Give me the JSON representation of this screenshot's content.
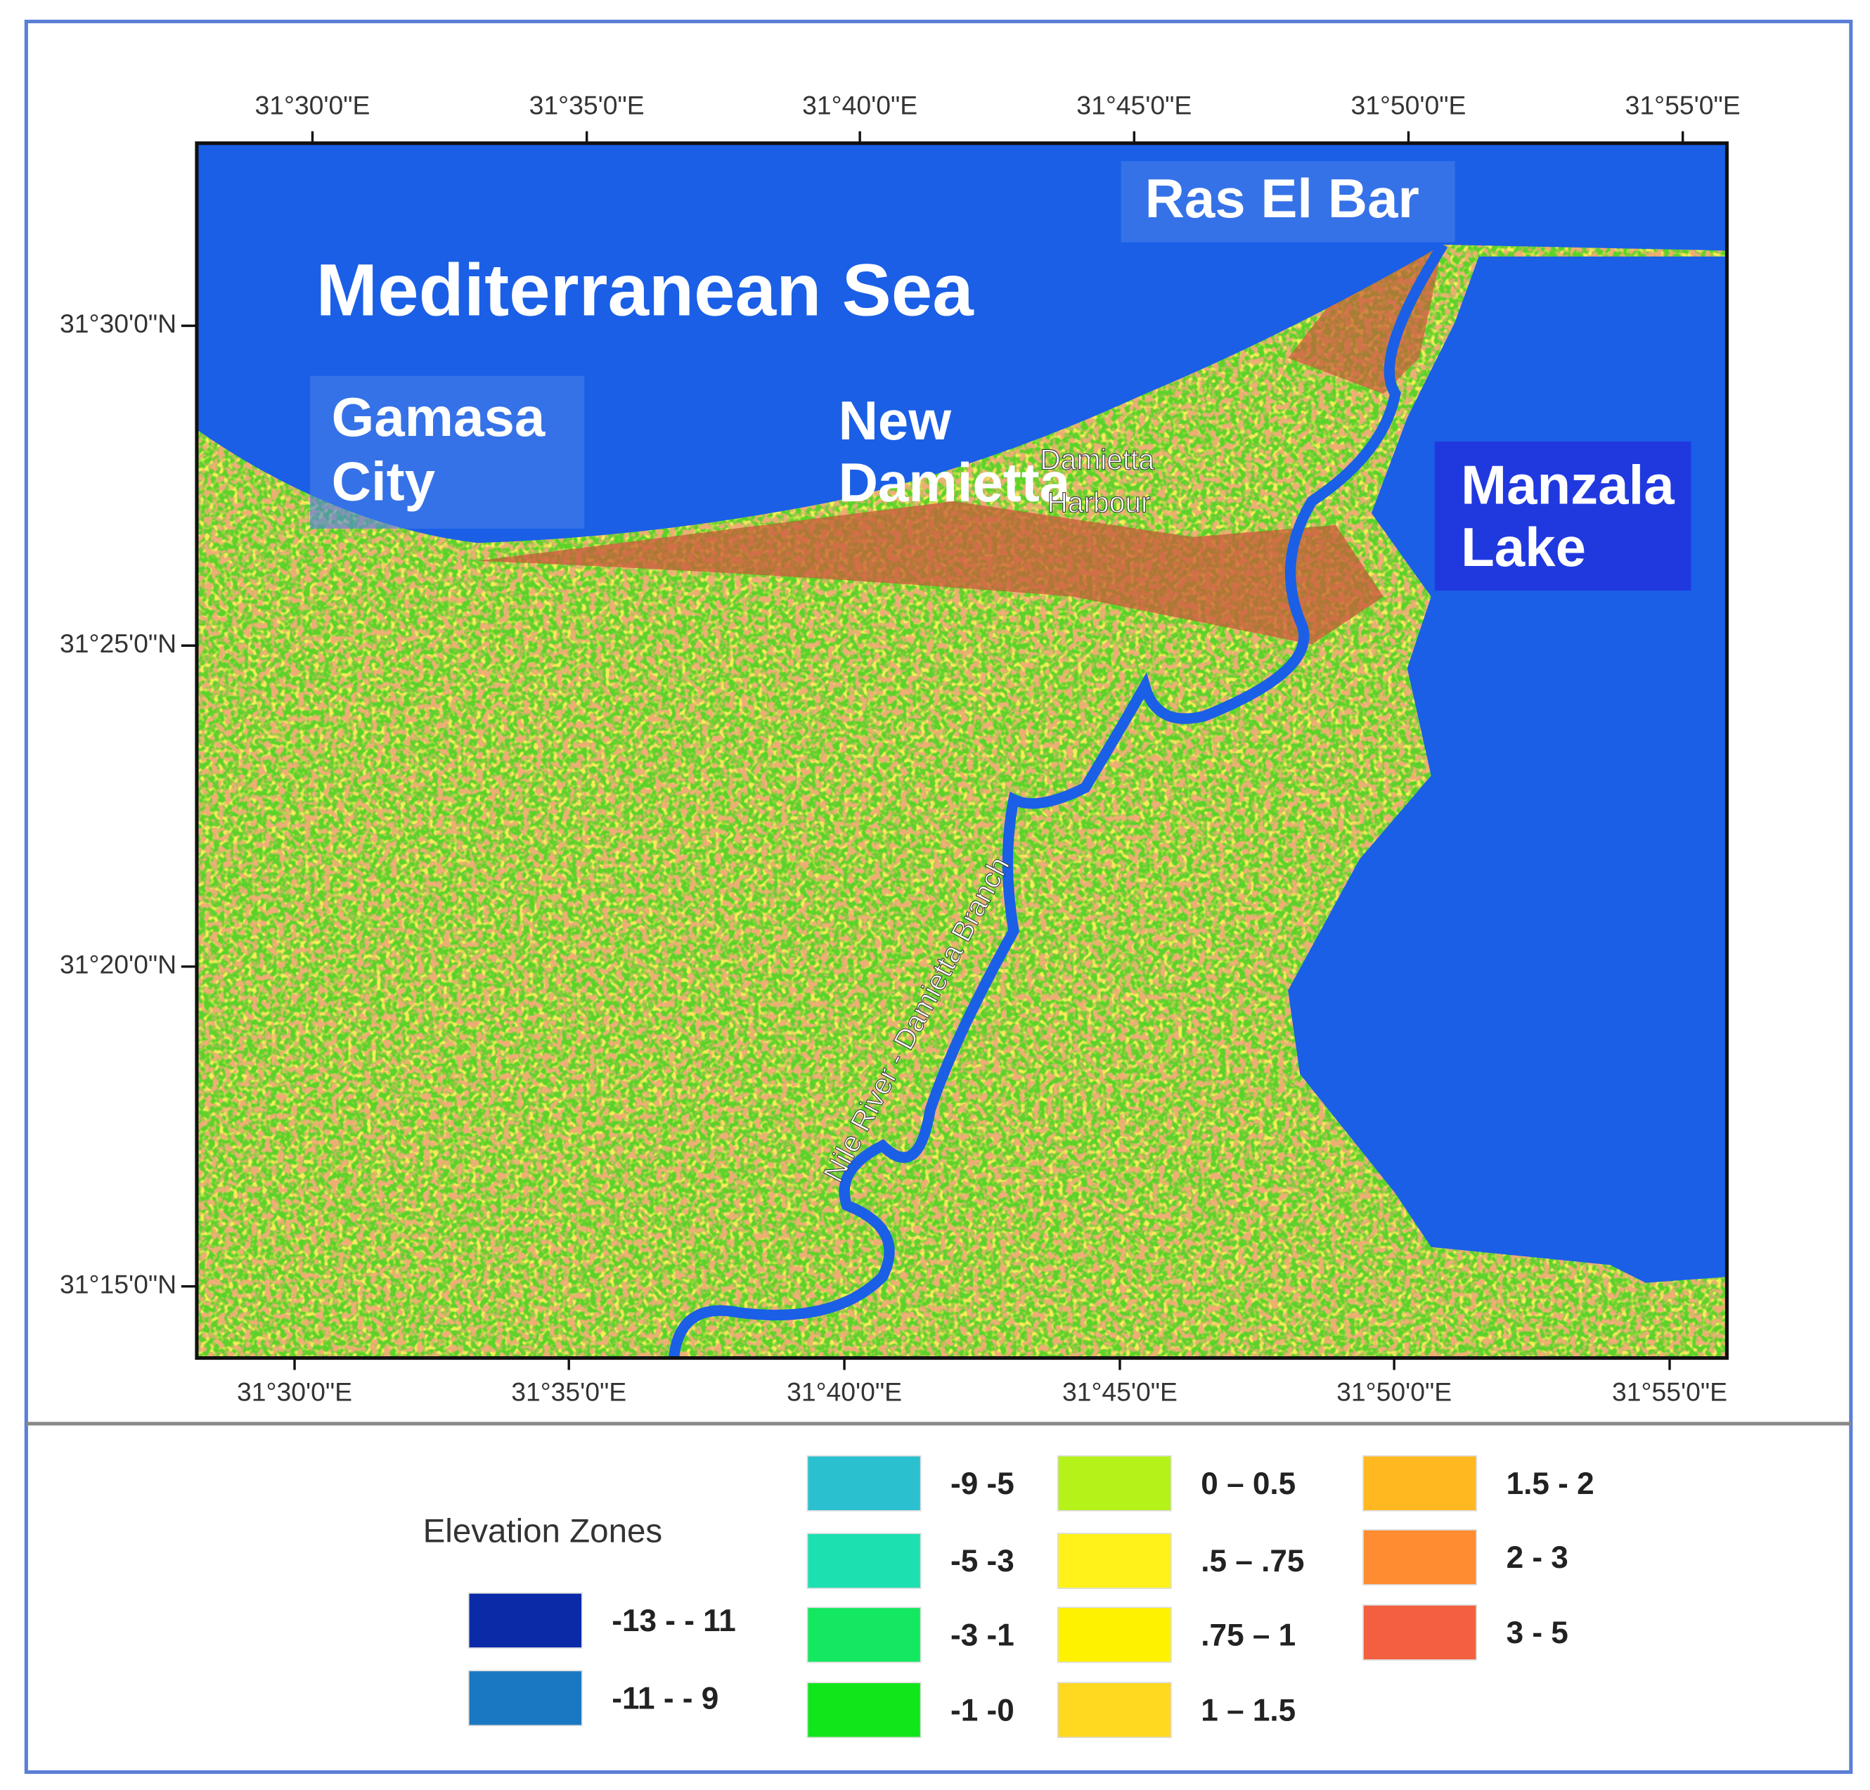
{
  "map": {
    "labels": {
      "sea": "Mediterranean Sea",
      "ras_el_bar": "Ras El Bar",
      "gamasa": [
        "Gamasa",
        "City"
      ],
      "new_damietta": [
        "New",
        "Damietta"
      ],
      "harbour": [
        "Damietta",
        "Harbour"
      ],
      "manzala": [
        "Manzala",
        "Lake"
      ],
      "river": "Nile River - Damietta Branch"
    },
    "top_ticks": [
      "31°30'0\"E",
      "31°35'0\"E",
      "31°40'0\"E",
      "31°45'0\"E",
      "31°50'0\"E",
      "31°55'0\"E"
    ],
    "bottom_ticks": [
      "31°30'0\"E",
      "31°35'0\"E",
      "31°40'0\"E",
      "31°45'0\"E",
      "31°50'0\"E",
      "31°55'0\"E"
    ],
    "left_ticks": [
      "31°30'0\"N",
      "31°25'0\"N",
      "31°20'0\"N",
      "31°15'0\"N"
    ]
  },
  "legend": {
    "title": "Elevation Zones",
    "items": [
      {
        "label": "-13 - - 11",
        "color": "#0a2aa8"
      },
      {
        "label": "-11 - - 9",
        "color": "#1a78c2"
      },
      {
        "label": "-9 -5",
        "color": "#2bc0d0"
      },
      {
        "label": "-5 -3",
        "color": "#1de0b0"
      },
      {
        "label": "-3 -1",
        "color": "#14e860"
      },
      {
        "label": "-1 -0",
        "color": "#10e61a"
      },
      {
        "label": "0 – 0.5",
        "color": "#b4f21a"
      },
      {
        "label": ".5 – .75",
        "color": "#fff21a"
      },
      {
        "label": ".75 – 1",
        "color": "#fff200"
      },
      {
        "label": "1 – 1.5",
        "color": "#ffd820"
      },
      {
        "label": "1.5 - 2",
        "color": "#ffb820"
      },
      {
        "label": "2 - 3",
        "color": "#ff8c30"
      },
      {
        "label": "3 - 5",
        "color": "#f26040"
      }
    ]
  }
}
